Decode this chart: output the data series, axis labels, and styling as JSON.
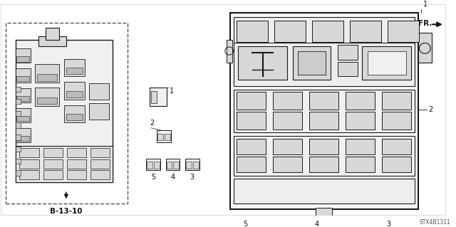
{
  "bg_color": "#ffffff",
  "lc": "#1a1a1a",
  "lc_gray": "#888888",
  "label_b1310": "B-13-10",
  "label_stx": "STX4B1311",
  "label_fr": "FR.",
  "fill_light": "#f0f0f0",
  "fill_mid": "#d8d8d8",
  "fill_dark": "#bbbbbb"
}
